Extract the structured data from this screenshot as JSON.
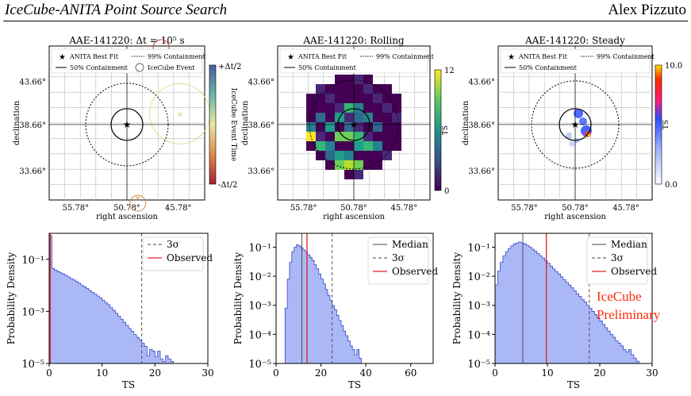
{
  "header": {
    "title": "IceCube-ANITA Point Source Search",
    "author": "Alex Pizzuto"
  },
  "annotation": {
    "line1": "IceCube",
    "line2": "Preliminary",
    "color": "#ff2b0a"
  },
  "chart_data": [
    {
      "type": "scatter",
      "panel": "top-left",
      "title": "AAE-141220: Δt = 10⁵ s",
      "xlabel": "right ascension",
      "ylabel": "declination",
      "xticks": [
        "55.78°",
        "50.78°",
        "45.78°"
      ],
      "yticks": [
        "43.66°",
        "38.66°",
        "33.66°"
      ],
      "legend": [
        "ANITA Best Fit",
        "99% Containment",
        "50% Containment",
        "IceCube Event"
      ],
      "colorbar_label": "IceCube Event Time",
      "colorbar_ticks": [
        "+Δt/2",
        "-Δt/2"
      ],
      "grid": true,
      "legend_placement": "top"
    },
    {
      "type": "heatmap",
      "panel": "top-middle",
      "title": "AAE-141220: Rolling",
      "xlabel": "right ascension",
      "ylabel": "declination",
      "xticks": [
        "55.78°",
        "50.78°",
        "45.78°"
      ],
      "yticks": [
        "43.66°",
        "38.66°",
        "33.66°"
      ],
      "legend": [
        "ANITA Best Fit",
        "99% Containment",
        "50% Containment"
      ],
      "colorbar_label": "TS",
      "colorbar_ticks": [
        "12",
        "0"
      ],
      "grid": true,
      "legend_placement": "top"
    },
    {
      "type": "heatmap",
      "panel": "top-right",
      "title": "AAE-141220: Steady",
      "xlabel": "right ascension",
      "ylabel": "declination",
      "xticks": [
        "55.78°",
        "50.78°",
        "45.78°"
      ],
      "yticks": [
        "43.66°",
        "38.66°",
        "33.66°"
      ],
      "legend": [
        "ANITA Best Fit",
        "99% Containment",
        "50% Containment"
      ],
      "colorbar_label": "TS",
      "colorbar_ticks": [
        "10.0",
        "0.0"
      ],
      "grid": true,
      "legend_placement": "top"
    },
    {
      "type": "bar",
      "panel": "bottom-left",
      "xlabel": "TS",
      "ylabel": "Probability Density",
      "xlim": [
        0,
        30
      ],
      "ylog": true,
      "ylim": [
        1e-05,
        1
      ],
      "xticks": [
        "0",
        "10",
        "20",
        "30"
      ],
      "yticks": [
        "10⁻¹",
        "10⁻³",
        "10⁻⁵"
      ],
      "legend": [
        "3σ",
        "Observed"
      ],
      "bin_width": 0.5,
      "bins_start": 0,
      "density": [
        0.82,
        0.045,
        0.038,
        0.034,
        0.03,
        0.027,
        0.024,
        0.021,
        0.018,
        0.016,
        0.014,
        0.012,
        0.01,
        0.0088,
        0.0075,
        0.0063,
        0.0054,
        0.0046,
        0.0039,
        0.0033,
        0.0027,
        0.0022,
        0.0018,
        0.0014,
        0.0011,
        0.00085,
        0.00065,
        0.0005,
        0.00038,
        0.00029,
        0.00022,
        0.00017,
        0.00013,
        0.0001,
        8e-05,
        6e-05,
        4.5e-05,
        2e-05,
        3.5e-05,
        3e-05,
        1.8e-05,
        3e-05,
        1.5e-05,
        1.2e-05,
        2e-05,
        1.5e-05,
        1.2e-05
      ],
      "three_sigma": 17.5,
      "observed": 0.2,
      "legend_placement": "top-right"
    },
    {
      "type": "bar",
      "panel": "bottom-middle",
      "xlabel": "TS",
      "ylabel": "Probability Density",
      "xlim": [
        0,
        70
      ],
      "ylog": true,
      "ylim": [
        1e-05,
        0.3
      ],
      "xticks": [
        "0",
        "20",
        "40",
        "60"
      ],
      "yticks": [
        "10⁻¹",
        "10⁻²",
        "10⁻³",
        "10⁻⁴",
        "10⁻⁵"
      ],
      "legend": [
        "Median",
        "3σ",
        "Observed"
      ],
      "bin_width": 1,
      "bins_start": 3,
      "density": [
        1e-05,
        0.0008,
        0.008,
        0.03,
        0.07,
        0.1,
        0.12,
        0.11,
        0.095,
        0.08,
        0.07,
        0.055,
        0.045,
        0.035,
        0.025,
        0.018,
        0.012,
        0.008,
        0.0055,
        0.0035,
        0.0022,
        0.0015,
        0.001,
        0.0007,
        0.00045,
        0.0003,
        0.0002,
        0.00013,
        9e-05,
        6e-05,
        4e-05,
        3e-05,
        2e-05,
        3e-05,
        1.5e-05
      ],
      "median": 11.5,
      "three_sigma": 25,
      "observed": 13.8,
      "legend_placement": "top-right"
    },
    {
      "type": "bar",
      "panel": "bottom-right",
      "xlabel": "TS",
      "ylabel": "Probability Density",
      "xlim": [
        0,
        30
      ],
      "ylog": true,
      "ylim": [
        1e-05,
        0.3
      ],
      "xticks": [
        "0",
        "10",
        "20",
        "30"
      ],
      "yticks": [
        "10⁻¹",
        "10⁻²",
        "10⁻³",
        "10⁻⁴",
        "10⁻⁵"
      ],
      "legend": [
        "Median",
        "3σ",
        "Observed"
      ],
      "bin_width": 0.5,
      "bins_start": 0,
      "density": [
        0.005,
        0.015,
        0.03,
        0.05,
        0.07,
        0.09,
        0.11,
        0.13,
        0.14,
        0.15,
        0.14,
        0.13,
        0.115,
        0.1,
        0.085,
        0.072,
        0.06,
        0.05,
        0.042,
        0.034,
        0.028,
        0.022,
        0.018,
        0.0145,
        0.012,
        0.0095,
        0.0077,
        0.0062,
        0.005,
        0.004,
        0.0032,
        0.0025,
        0.002,
        0.0016,
        0.0013,
        0.001,
        0.00078,
        0.00062,
        0.00048,
        0.00037,
        0.00029,
        0.00022,
        0.00017,
        0.00013,
        0.0001,
        8e-05,
        6e-05,
        5e-05,
        4e-05,
        3e-05,
        2.5e-05,
        3e-05,
        2e-05,
        1.5e-05,
        1.2e-05
      ],
      "median": 5.3,
      "three_sigma": 18,
      "observed": 9.8,
      "legend_placement": "top-right"
    }
  ]
}
